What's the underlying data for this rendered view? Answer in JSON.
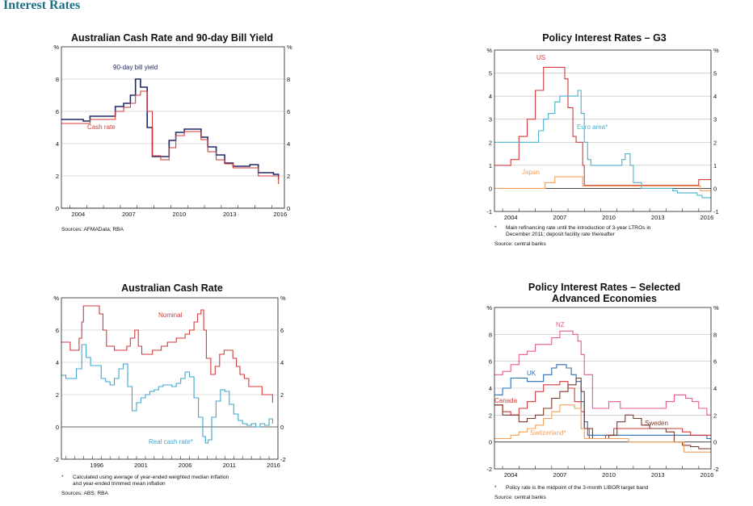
{
  "page": {
    "title": "Interest Rates"
  },
  "chart_data": [
    {
      "type": "line",
      "title": "Australian Cash Rate and 90-day Bill Yield",
      "unit_left": "%",
      "unit_right": "%",
      "x_ticks": [
        "2004",
        "2007",
        "2010",
        "2013",
        "2016"
      ],
      "y_ticks": [
        "0",
        "2",
        "4",
        "6",
        "8"
      ],
      "xlim": [
        2003.5,
        2016.75
      ],
      "ylim": [
        0,
        10
      ],
      "footnotes": [
        "Sources:   AFMAData; RBA"
      ],
      "series": [
        {
          "name": "90-day bill yield",
          "color": "#1f2a6e",
          "x": [
            2003.5,
            2004.8,
            2005.2,
            2006.2,
            2006.7,
            2007.2,
            2007.6,
            2007.9,
            2008.2,
            2008.6,
            2008.9,
            2009.4,
            2009.9,
            2010.3,
            2010.8,
            2011.3,
            2011.8,
            2012.2,
            2012.7,
            2013.2,
            2013.7,
            2014.2,
            2014.7,
            2015.2,
            2015.6,
            2016.1,
            2016.4
          ],
          "values": [
            5.5,
            5.4,
            5.7,
            5.7,
            6.3,
            6.5,
            7.0,
            8.0,
            7.5,
            5.0,
            3.2,
            3.2,
            4.2,
            4.7,
            4.9,
            4.9,
            4.4,
            3.8,
            3.3,
            2.8,
            2.6,
            2.6,
            2.7,
            2.2,
            2.2,
            2.1,
            1.8
          ]
        },
        {
          "name": "Cash rate",
          "color": "#d23a3a",
          "x": [
            2003.5,
            2004.8,
            2005.2,
            2006.2,
            2006.7,
            2007.2,
            2007.6,
            2007.9,
            2008.2,
            2008.6,
            2008.9,
            2009.4,
            2009.9,
            2010.3,
            2010.8,
            2011.3,
            2011.8,
            2012.2,
            2012.7,
            2013.2,
            2013.7,
            2014.2,
            2014.7,
            2015.2,
            2015.6,
            2016.1,
            2016.4
          ],
          "values": [
            5.25,
            5.25,
            5.5,
            5.5,
            6.0,
            6.25,
            6.5,
            7.0,
            7.25,
            6.0,
            3.25,
            3.0,
            3.75,
            4.5,
            4.75,
            4.75,
            4.25,
            3.5,
            3.0,
            2.75,
            2.5,
            2.5,
            2.5,
            2.0,
            2.0,
            2.0,
            1.5
          ]
        }
      ],
      "annotations": [
        "90-day bill yield",
        "Cash rate"
      ]
    },
    {
      "type": "line",
      "title": "Policy Interest Rates – G3",
      "unit_left": "%",
      "unit_right": "%",
      "x_ticks": [
        "2004",
        "2007",
        "2010",
        "2013",
        "2016"
      ],
      "y_ticks": [
        "-1",
        "0",
        "1",
        "2",
        "3",
        "4",
        "5"
      ],
      "xlim": [
        2003.5,
        2016.75
      ],
      "ylim": [
        -1,
        6
      ],
      "footnotes": [
        "*",
        "Main refinancing rate until the introduction of 3-year LTROs in",
        "December 2011; deposit facility rate thereafter",
        "Source:    central banks"
      ],
      "series": [
        {
          "name": "US",
          "color": "#d23a3a",
          "x": [
            2003.5,
            2004.3,
            2004.5,
            2005.0,
            2005.5,
            2006.0,
            2006.5,
            2007.5,
            2007.8,
            2008.0,
            2008.3,
            2008.5,
            2008.9,
            2009.0,
            2015.9,
            2016.0,
            2016.75
          ],
          "values": [
            1.0,
            1.0,
            1.25,
            2.25,
            3.0,
            4.25,
            5.25,
            5.25,
            4.75,
            3.5,
            2.25,
            2.0,
            1.0,
            0.13,
            0.13,
            0.38,
            0.38
          ]
        },
        {
          "name": "Euro area*",
          "color": "#4ab3c9",
          "x": [
            2003.5,
            2005.9,
            2006.2,
            2006.5,
            2006.8,
            2007.2,
            2007.5,
            2008.5,
            2008.6,
            2008.8,
            2009.0,
            2009.2,
            2009.4,
            2011.2,
            2011.3,
            2011.5,
            2011.8,
            2012.0,
            2012.5,
            2014.4,
            2014.7,
            2015.9,
            2016.2,
            2016.75
          ],
          "values": [
            2.0,
            2.0,
            2.5,
            3.0,
            3.25,
            3.75,
            4.0,
            4.0,
            4.25,
            3.25,
            2.0,
            1.25,
            1.0,
            1.0,
            1.25,
            1.5,
            1.0,
            0.25,
            0.0,
            -0.1,
            -0.2,
            -0.3,
            -0.4,
            -0.4
          ]
        },
        {
          "name": "Japan",
          "color": "#f0a05a",
          "x": [
            2003.5,
            2006.5,
            2006.6,
            2007.1,
            2007.2,
            2008.8,
            2008.9,
            2016.0,
            2016.1,
            2016.75
          ],
          "values": [
            0.0,
            0.0,
            0.25,
            0.25,
            0.5,
            0.5,
            0.1,
            0.1,
            -0.1,
            -0.1
          ]
        }
      ],
      "annotations": [
        "US",
        "Euro area*",
        "Japan"
      ]
    },
    {
      "type": "line",
      "title": "Australian Cash Rate",
      "unit_left": "%",
      "unit_right": "%",
      "x_ticks": [
        "1996",
        "2001",
        "2006",
        "2011",
        "2016"
      ],
      "y_ticks": [
        "-2",
        "0",
        "2",
        "4",
        "6"
      ],
      "xlim": [
        1992.5,
        2017.0
      ],
      "ylim": [
        -2,
        8
      ],
      "footnotes": [
        "*",
        "Calculated using average of year-ended weighted median inflation",
        "and year-ended trimmed mean inflation",
        "Sources:   ABS; RBA"
      ],
      "series": [
        {
          "name": "Nominal",
          "color": "#d23a3a",
          "x": [
            1992.5,
            1993.0,
            1993.5,
            1994.0,
            1994.5,
            1994.8,
            1995.0,
            1996.5,
            1996.8,
            1997.2,
            1997.6,
            1998.0,
            1998.5,
            1999.5,
            1999.9,
            2000.3,
            2000.8,
            2001.2,
            2001.6,
            2002.2,
            2002.8,
            2003.8,
            2004.5,
            2005.5,
            2006.0,
            2006.5,
            2007.0,
            2007.5,
            2007.9,
            2008.3,
            2008.6,
            2008.9,
            2009.4,
            2009.9,
            2010.4,
            2010.9,
            2011.5,
            2011.9,
            2012.3,
            2012.7,
            2013.2,
            2013.7,
            2014.5,
            2015.2,
            2015.6,
            2016.1,
            2016.4
          ],
          "values": [
            5.25,
            5.25,
            4.75,
            4.75,
            5.5,
            6.5,
            7.5,
            7.5,
            7.0,
            6.0,
            5.0,
            5.0,
            4.75,
            4.75,
            5.0,
            5.5,
            6.0,
            5.0,
            4.5,
            4.5,
            4.75,
            5.0,
            5.25,
            5.5,
            5.5,
            5.75,
            6.0,
            6.5,
            7.0,
            7.25,
            6.0,
            4.25,
            3.25,
            3.75,
            4.5,
            4.75,
            4.75,
            4.25,
            3.75,
            3.25,
            3.0,
            2.5,
            2.5,
            2.0,
            2.0,
            2.0,
            1.5
          ]
        },
        {
          "name": "Real cash rate*",
          "color": "#3fa6c9",
          "x": [
            1992.5,
            1993.0,
            1993.5,
            1994.2,
            1994.8,
            1995.3,
            1995.8,
            1996.5,
            1997.0,
            1997.5,
            1998.0,
            1998.5,
            1999.0,
            1999.5,
            2000.0,
            2000.5,
            2001.0,
            2001.5,
            2002.0,
            2002.5,
            2003.0,
            2003.5,
            2004.0,
            2004.5,
            2005.0,
            2005.5,
            2006.0,
            2006.5,
            2007.0,
            2007.5,
            2008.0,
            2008.5,
            2008.8,
            2009.1,
            2009.5,
            2010.0,
            2010.5,
            2011.0,
            2011.5,
            2012.0,
            2012.5,
            2013.0,
            2013.5,
            2014.0,
            2014.5,
            2015.0,
            2015.5,
            2016.0,
            2016.4
          ],
          "values": [
            3.2,
            3.0,
            3.0,
            3.6,
            5.1,
            4.3,
            3.8,
            3.8,
            3.0,
            2.8,
            2.6,
            3.0,
            3.6,
            3.9,
            2.5,
            1.0,
            1.5,
            1.8,
            2.0,
            2.2,
            2.3,
            2.5,
            2.6,
            2.6,
            2.5,
            2.7,
            3.0,
            3.4,
            3.1,
            1.8,
            0.6,
            -0.6,
            -1.0,
            -0.8,
            0.6,
            1.6,
            2.3,
            2.2,
            1.4,
            0.8,
            0.4,
            0.2,
            0.1,
            0.2,
            0.0,
            0.2,
            0.1,
            0.5,
            0.2
          ]
        }
      ],
      "annotations": [
        "Nominal",
        "Real cash rate*"
      ]
    },
    {
      "type": "line",
      "title": "Policy Interest Rates – Selected Advanced Economies",
      "title_lines": [
        "Policy Interest Rates – Selected",
        "Advanced Economies"
      ],
      "unit_left": "%",
      "unit_right": "%",
      "x_ticks": [
        "2004",
        "2007",
        "2010",
        "2013",
        "2016"
      ],
      "y_ticks": [
        "-2",
        "0",
        "2",
        "4",
        "6",
        "8"
      ],
      "xlim": [
        2003.5,
        2016.75
      ],
      "ylim": [
        -2,
        10
      ],
      "footnotes": [
        "*",
        "Policy rate is the midpoint of the 3-month LIBOR target band",
        "Source:    central banks"
      ],
      "series": [
        {
          "name": "NZ",
          "color": "#e65a92",
          "x": [
            2003.5,
            2004.0,
            2004.5,
            2005.0,
            2005.5,
            2006.0,
            2006.5,
            2007.0,
            2007.5,
            2008.0,
            2008.3,
            2008.6,
            2008.8,
            2009.0,
            2009.5,
            2010.5,
            2011.2,
            2013.5,
            2014.0,
            2014.5,
            2015.2,
            2015.6,
            2016.0,
            2016.5,
            2016.75
          ],
          "values": [
            5.0,
            5.25,
            5.75,
            6.5,
            6.75,
            7.25,
            7.25,
            7.75,
            8.25,
            8.25,
            8.0,
            7.5,
            6.5,
            5.0,
            2.5,
            3.0,
            2.5,
            2.5,
            3.0,
            3.5,
            3.25,
            3.0,
            2.5,
            2.0,
            2.0
          ]
        },
        {
          "name": "UK",
          "color": "#2a6fb3",
          "x": [
            2003.5,
            2004.0,
            2004.5,
            2005.5,
            2006.5,
            2007.0,
            2007.3,
            2007.9,
            2008.2,
            2008.5,
            2008.8,
            2009.0,
            2009.2,
            2016.5,
            2016.75
          ],
          "values": [
            3.5,
            4.0,
            4.75,
            4.5,
            5.0,
            5.5,
            5.75,
            5.5,
            5.0,
            4.5,
            3.0,
            1.5,
            0.5,
            0.25,
            0.25
          ]
        },
        {
          "name": "Canada",
          "color": "#d23a3a",
          "x": [
            2003.5,
            2004.0,
            2004.5,
            2005.0,
            2005.5,
            2006.0,
            2006.5,
            2007.5,
            2008.0,
            2008.4,
            2008.8,
            2009.0,
            2009.3,
            2010.3,
            2010.8,
            2015.0,
            2015.5,
            2016.75
          ],
          "values": [
            2.75,
            2.25,
            2.0,
            2.5,
            3.0,
            3.75,
            4.25,
            4.5,
            4.0,
            3.0,
            2.25,
            1.0,
            0.25,
            0.5,
            1.0,
            0.75,
            0.5,
            0.5
          ]
        },
        {
          "name": "Sweden",
          "color": "#7a3a2a",
          "x": [
            2003.5,
            2004.0,
            2005.0,
            2005.5,
            2006.0,
            2006.5,
            2007.0,
            2007.5,
            2008.0,
            2008.5,
            2008.8,
            2009.0,
            2009.5,
            2010.5,
            2011.0,
            2011.5,
            2012.0,
            2012.5,
            2013.0,
            2014.0,
            2014.5,
            2015.0,
            2015.5,
            2016.0,
            2016.75
          ],
          "values": [
            2.75,
            2.0,
            1.5,
            1.75,
            2.0,
            2.5,
            3.25,
            3.75,
            4.25,
            4.75,
            3.75,
            1.0,
            0.25,
            0.5,
            1.5,
            2.0,
            1.75,
            1.25,
            1.0,
            0.75,
            0.0,
            -0.25,
            -0.35,
            -0.5,
            -0.5
          ]
        },
        {
          "name": "Switzerland*",
          "color": "#f0a05a",
          "x": [
            2003.5,
            2004.5,
            2005.0,
            2005.5,
            2006.0,
            2006.5,
            2007.0,
            2007.5,
            2008.0,
            2008.4,
            2008.8,
            2009.0,
            2011.0,
            2011.7,
            2014.8,
            2015.1,
            2016.75
          ],
          "values": [
            0.25,
            0.5,
            0.75,
            1.0,
            1.25,
            1.75,
            2.25,
            2.75,
            2.75,
            2.5,
            1.0,
            0.25,
            0.25,
            0.0,
            0.0,
            -0.75,
            -0.75
          ]
        }
      ],
      "annotations": [
        "NZ",
        "UK",
        "Canada",
        "Sweden",
        "Switzerland*"
      ]
    }
  ]
}
